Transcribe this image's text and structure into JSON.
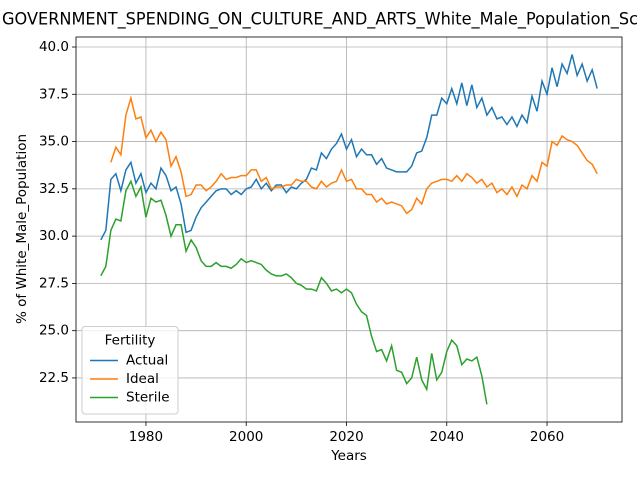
{
  "chart_data": {
    "type": "line",
    "title": "GOVERNMENT_SPENDING_ON_CULTURE_AND_ARTS_White_Male_Population_Sc",
    "xlabel": "Years",
    "ylabel": "% of White_Male_Population",
    "x": [
      1971,
      1972,
      1973,
      1974,
      1975,
      1976,
      1977,
      1978,
      1979,
      1980,
      1981,
      1982,
      1983,
      1984,
      1985,
      1986,
      1987,
      1988,
      1989,
      1990,
      1991,
      1992,
      1993,
      1994,
      1995,
      1996,
      1997,
      1998,
      1999,
      2000,
      2001,
      2002,
      2003,
      2004,
      2005,
      2006,
      2007,
      2008,
      2009,
      2010,
      2011,
      2012,
      2013,
      2014,
      2015,
      2016,
      2017,
      2018,
      2019,
      2020,
      2021,
      2022,
      2023,
      2024,
      2025,
      2026,
      2027,
      2028,
      2029,
      2030,
      2031,
      2032,
      2033,
      2034,
      2035,
      2036,
      2037,
      2038,
      2039,
      2040,
      2041,
      2042,
      2043,
      2044,
      2045,
      2046,
      2047,
      2048,
      2049,
      2050,
      2051,
      2052,
      2053,
      2054,
      2055,
      2056,
      2057,
      2058,
      2059,
      2060,
      2061,
      2062,
      2063,
      2064,
      2065,
      2066,
      2067,
      2068,
      2069,
      2070
    ],
    "series": [
      {
        "name": "Actual",
        "color": "#1f77b4",
        "values": [
          29.8,
          30.3,
          33.0,
          33.3,
          32.4,
          33.5,
          33.9,
          32.8,
          33.3,
          32.3,
          32.8,
          32.5,
          33.6,
          33.2,
          32.4,
          32.6,
          31.7,
          30.2,
          30.3,
          31.0,
          31.5,
          31.8,
          32.1,
          32.4,
          32.5,
          32.5,
          32.2,
          32.4,
          32.2,
          32.5,
          32.6,
          33.0,
          32.5,
          32.8,
          32.4,
          32.7,
          32.7,
          32.3,
          32.6,
          32.5,
          32.8,
          33.0,
          33.6,
          33.5,
          34.4,
          34.1,
          34.6,
          34.9,
          35.4,
          34.6,
          35.1,
          34.2,
          34.6,
          34.3,
          34.3,
          33.8,
          34.1,
          33.6,
          33.5,
          33.4,
          33.4,
          33.4,
          33.7,
          34.4,
          34.5,
          35.2,
          36.4,
          36.4,
          37.3,
          37.0,
          37.8,
          37.0,
          38.1,
          36.9,
          38.0,
          36.8,
          37.3,
          36.4,
          36.8,
          36.2,
          36.3,
          35.9,
          36.3,
          35.8,
          36.4,
          36.0,
          37.4,
          36.6,
          38.2,
          37.5,
          38.9,
          37.9,
          39.1,
          38.6,
          39.6,
          38.5,
          39.1,
          38.2,
          38.8,
          37.8
        ]
      },
      {
        "name": "Ideal",
        "color": "#ff7f0e",
        "values": [
          null,
          null,
          33.9,
          34.7,
          34.3,
          36.4,
          37.3,
          36.2,
          36.3,
          35.2,
          35.6,
          35.0,
          35.5,
          35.1,
          33.7,
          34.2,
          33.4,
          32.1,
          32.2,
          32.7,
          32.7,
          32.4,
          32.6,
          32.9,
          33.3,
          33.0,
          33.1,
          33.1,
          33.2,
          33.2,
          33.5,
          33.5,
          32.9,
          33.1,
          32.5,
          32.6,
          32.6,
          32.7,
          32.7,
          33.0,
          32.9,
          32.9,
          32.6,
          32.5,
          32.9,
          32.6,
          32.8,
          32.9,
          33.5,
          32.9,
          33.0,
          32.5,
          32.5,
          32.2,
          32.2,
          31.8,
          32.0,
          31.7,
          31.8,
          31.7,
          31.6,
          31.2,
          31.4,
          32.0,
          31.7,
          32.5,
          32.8,
          32.9,
          33.0,
          33.0,
          32.9,
          33.2,
          32.9,
          33.3,
          33.1,
          32.8,
          33.0,
          32.6,
          32.8,
          32.3,
          32.5,
          32.2,
          32.6,
          32.1,
          32.7,
          32.5,
          33.2,
          32.9,
          33.9,
          33.7,
          35.0,
          34.8,
          35.3,
          35.1,
          35.0,
          34.8,
          34.4,
          34.0,
          33.8,
          33.3
        ]
      },
      {
        "name": "Sterile",
        "color": "#2ca02c",
        "values": [
          27.9,
          28.4,
          30.3,
          30.9,
          30.8,
          32.4,
          32.9,
          32.1,
          32.6,
          31.0,
          32.0,
          31.8,
          31.9,
          31.1,
          30.0,
          30.6,
          30.6,
          29.2,
          29.8,
          29.4,
          28.7,
          28.4,
          28.4,
          28.6,
          28.4,
          28.4,
          28.3,
          28.5,
          28.8,
          28.6,
          28.7,
          28.6,
          28.5,
          28.2,
          28.0,
          27.9,
          27.9,
          28.0,
          27.8,
          27.5,
          27.4,
          27.2,
          27.2,
          27.1,
          27.8,
          27.5,
          27.1,
          27.2,
          27.0,
          27.2,
          27.0,
          26.4,
          26.0,
          25.8,
          24.7,
          23.9,
          24.0,
          23.4,
          24.2,
          22.9,
          22.8,
          22.2,
          22.5,
          23.6,
          22.4,
          21.9,
          23.8,
          22.4,
          22.8,
          23.9,
          24.5,
          24.2,
          23.2,
          23.5,
          23.4,
          23.6,
          22.6,
          21.1,
          null,
          null,
          null,
          null,
          null,
          null,
          null,
          null,
          null,
          null,
          null,
          null,
          null,
          null,
          null,
          null,
          null,
          null,
          null,
          null,
          null,
          null
        ]
      }
    ],
    "xlim": [
      1966.05,
      2074.95
    ],
    "xticks": [
      1980,
      2000,
      2020,
      2040,
      2060
    ],
    "ylim": [
      20.17,
      40.53
    ],
    "yticks": [
      22.5,
      {
        "value": 25,
        "label": "25.0"
      },
      27.5,
      {
        "value": 30,
        "label": "30.0"
      },
      32.5,
      {
        "value": 35,
        "label": "35.0"
      },
      37.5,
      {
        "value": 40,
        "label": "40.0"
      }
    ],
    "grid": true,
    "legend": {
      "title": "Fertility",
      "loc": "lower left"
    }
  }
}
